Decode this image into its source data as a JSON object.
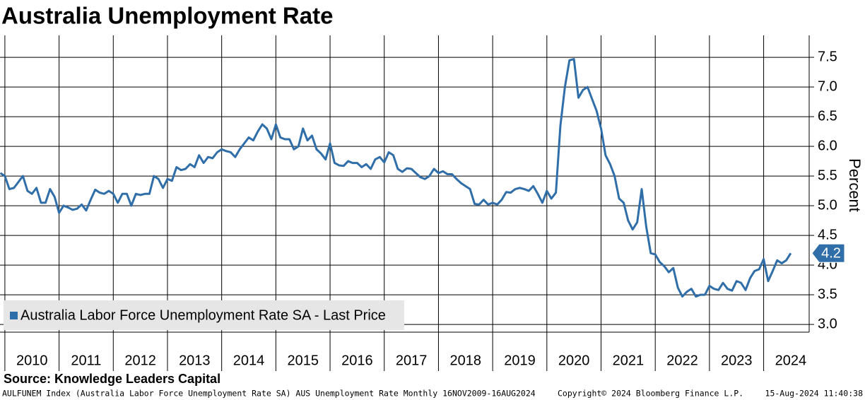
{
  "chart_data": {
    "type": "line",
    "title": "Australia Unemployment Rate",
    "y_label": "Percent",
    "source": "Source: Knowledge Leaders Capital",
    "footer": [
      "AULFUNEM Index (Australia Labor Force Unemployment Rate SA) AUS Unemployment Rate  Monthly 16NOV2009-16AUG2024",
      "Copyright© 2024 Bloomberg Finance L.P.",
      "15-Aug-2024 11:40:38"
    ],
    "legend": "bottom-left",
    "grid": true,
    "xlim": [
      2009.91,
      2024.84
    ],
    "xticks": [
      {
        "value": 2010,
        "label": "2010"
      },
      {
        "value": 2011,
        "label": "2011"
      },
      {
        "value": 2012,
        "label": "2012"
      },
      {
        "value": 2013,
        "label": "2013"
      },
      {
        "value": 2014,
        "label": "2014"
      },
      {
        "value": 2015,
        "label": "2015"
      },
      {
        "value": 2016,
        "label": "2016"
      },
      {
        "value": 2017,
        "label": "2017"
      },
      {
        "value": 2018,
        "label": "2018"
      },
      {
        "value": 2019,
        "label": "2019"
      },
      {
        "value": 2020,
        "label": "2020"
      },
      {
        "value": 2021,
        "label": "2021"
      },
      {
        "value": 2022,
        "label": "2022"
      },
      {
        "value": 2023,
        "label": "2023"
      },
      {
        "value": 2024,
        "label": "2024"
      }
    ],
    "ylim": [
      2.87,
      7.87
    ],
    "yticks": [
      {
        "value": 3,
        "label": "3.0"
      },
      3.5,
      {
        "value": 4,
        "label": "4.0"
      },
      4.5,
      {
        "value": 5,
        "label": "5.0"
      },
      5.5,
      {
        "value": 6,
        "label": "6.0"
      },
      6.5,
      {
        "value": 7,
        "label": "7.0"
      },
      7.5
    ],
    "x": [
      2009.917,
      2010,
      2010.083,
      2010.167,
      2010.25,
      2010.333,
      2010.417,
      2010.5,
      2010.583,
      2010.667,
      2010.75,
      2010.833,
      2010.917,
      2011,
      2011.083,
      2011.167,
      2011.25,
      2011.333,
      2011.417,
      2011.5,
      2011.583,
      2011.667,
      2011.75,
      2011.833,
      2011.917,
      2012,
      2012.083,
      2012.167,
      2012.25,
      2012.333,
      2012.417,
      2012.5,
      2012.583,
      2012.667,
      2012.75,
      2012.833,
      2012.917,
      2013,
      2013.083,
      2013.167,
      2013.25,
      2013.333,
      2013.417,
      2013.5,
      2013.583,
      2013.667,
      2013.75,
      2013.833,
      2013.917,
      2014,
      2014.083,
      2014.167,
      2014.25,
      2014.333,
      2014.417,
      2014.5,
      2014.583,
      2014.667,
      2014.75,
      2014.833,
      2014.917,
      2015,
      2015.083,
      2015.167,
      2015.25,
      2015.333,
      2015.417,
      2015.5,
      2015.583,
      2015.667,
      2015.75,
      2015.833,
      2015.917,
      2016,
      2016.083,
      2016.167,
      2016.25,
      2016.333,
      2016.417,
      2016.5,
      2016.583,
      2016.667,
      2016.75,
      2016.833,
      2016.917,
      2017,
      2017.083,
      2017.167,
      2017.25,
      2017.333,
      2017.417,
      2017.5,
      2017.583,
      2017.667,
      2017.75,
      2017.833,
      2017.917,
      2018,
      2018.083,
      2018.167,
      2018.25,
      2018.333,
      2018.417,
      2018.5,
      2018.583,
      2018.667,
      2018.75,
      2018.833,
      2018.917,
      2019,
      2019.083,
      2019.167,
      2019.25,
      2019.333,
      2019.417,
      2019.5,
      2019.583,
      2019.667,
      2019.75,
      2019.833,
      2019.917,
      2020,
      2020.083,
      2020.167,
      2020.25,
      2020.333,
      2020.417,
      2020.5,
      2020.583,
      2020.667,
      2020.75,
      2020.833,
      2020.917,
      2021,
      2021.083,
      2021.167,
      2021.25,
      2021.333,
      2021.417,
      2021.5,
      2021.583,
      2021.667,
      2021.75,
      2021.833,
      2021.917,
      2022,
      2022.083,
      2022.167,
      2022.25,
      2022.333,
      2022.417,
      2022.5,
      2022.583,
      2022.667,
      2022.75,
      2022.833,
      2022.917,
      2023,
      2023.083,
      2023.167,
      2023.25,
      2023.333,
      2023.417,
      2023.5,
      2023.583,
      2023.667,
      2023.75,
      2023.833,
      2023.917,
      2024,
      2024.083,
      2024.167,
      2024.25,
      2024.333,
      2024.417,
      2024.5
    ],
    "series": [
      {
        "name": "Australia Labor Force Unemployment Rate SA - Last Price",
        "color": "#2f6ea8",
        "values": [
          5.55,
          5.5,
          5.28,
          5.3,
          5.4,
          5.5,
          5.25,
          5.2,
          5.3,
          5.05,
          5.05,
          5.28,
          5.15,
          4.88,
          5.0,
          4.97,
          4.93,
          4.95,
          5.02,
          4.92,
          5.1,
          5.27,
          5.22,
          5.2,
          5.25,
          5.2,
          5.05,
          5.2,
          5.2,
          5.0,
          5.2,
          5.18,
          5.2,
          5.2,
          5.5,
          5.45,
          5.3,
          5.45,
          5.42,
          5.65,
          5.6,
          5.62,
          5.7,
          5.65,
          5.85,
          5.72,
          5.82,
          5.8,
          5.9,
          5.95,
          5.92,
          5.9,
          5.82,
          5.95,
          6.05,
          6.15,
          6.1,
          6.25,
          6.37,
          6.3,
          6.12,
          6.37,
          6.15,
          6.12,
          6.12,
          5.95,
          6.0,
          6.3,
          6.1,
          6.18,
          5.95,
          5.88,
          5.78,
          6.05,
          5.72,
          5.68,
          5.67,
          5.75,
          5.72,
          5.72,
          5.65,
          5.7,
          5.62,
          5.78,
          5.82,
          5.73,
          5.9,
          5.85,
          5.62,
          5.57,
          5.63,
          5.62,
          5.55,
          5.48,
          5.45,
          5.5,
          5.62,
          5.55,
          5.58,
          5.53,
          5.53,
          5.45,
          5.38,
          5.33,
          5.28,
          5.03,
          5.02,
          5.1,
          5.02,
          5.05,
          5.02,
          5.1,
          5.23,
          5.22,
          5.28,
          5.3,
          5.28,
          5.25,
          5.33,
          5.2,
          5.05,
          5.25,
          5.12,
          5.22,
          6.35,
          7.0,
          7.45,
          7.47,
          6.82,
          6.95,
          7.0,
          6.8,
          6.6,
          6.3,
          5.85,
          5.7,
          5.5,
          5.12,
          5.05,
          4.75,
          4.6,
          4.72,
          5.28,
          4.65,
          4.2,
          4.18,
          4.05,
          3.98,
          3.88,
          3.95,
          3.62,
          3.47,
          3.55,
          3.6,
          3.47,
          3.5,
          3.5,
          3.65,
          3.6,
          3.58,
          3.7,
          3.6,
          3.57,
          3.73,
          3.7,
          3.58,
          3.78,
          3.9,
          3.93,
          4.1,
          3.73,
          3.9,
          4.08,
          4.03,
          4.08,
          4.2
        ]
      }
    ]
  }
}
